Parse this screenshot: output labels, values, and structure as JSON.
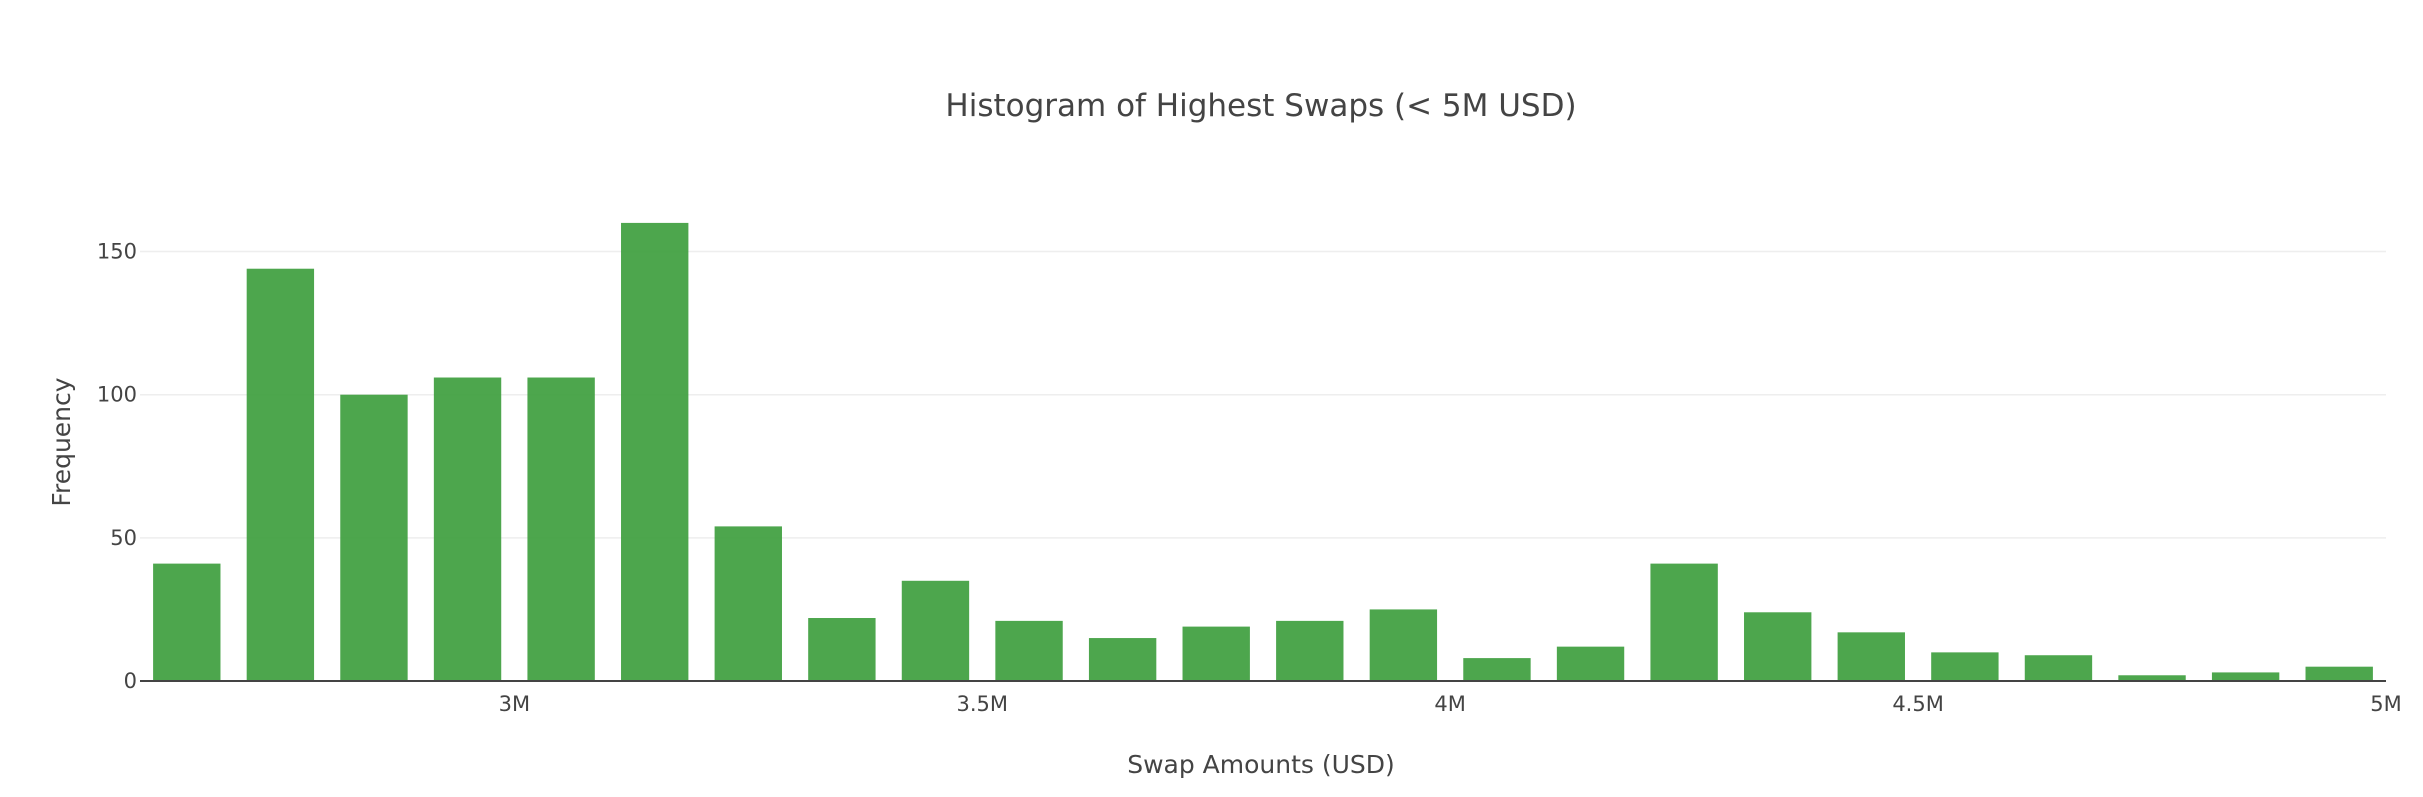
{
  "chart_data": {
    "type": "bar",
    "title": "Histogram of Highest Swaps (< 5M USD)",
    "xlabel": "Swap Amounts (USD)",
    "ylabel": "Frequency",
    "bin_size": 100000,
    "x_range": [
      2600000,
      5000000
    ],
    "ylim": [
      0,
      168
    ],
    "grid": true,
    "legend": "none",
    "x_ticks": [
      {
        "value": 3000000,
        "label": "3M"
      },
      {
        "value": 3500000,
        "label": "3.5M"
      },
      {
        "value": 4000000,
        "label": "4M"
      },
      {
        "value": 4500000,
        "label": "4.5M"
      },
      {
        "value": 5000000,
        "label": "5M"
      }
    ],
    "y_ticks": [
      {
        "value": 0,
        "label": "0"
      },
      {
        "value": 50,
        "label": "50"
      },
      {
        "value": 100,
        "label": "100"
      },
      {
        "value": 150,
        "label": "150"
      }
    ],
    "bins": [
      {
        "start": 2600000,
        "end": 2700000,
        "count": 41
      },
      {
        "start": 2700000,
        "end": 2800000,
        "count": 144
      },
      {
        "start": 2800000,
        "end": 2900000,
        "count": 100
      },
      {
        "start": 2900000,
        "end": 3000000,
        "count": 106
      },
      {
        "start": 3000000,
        "end": 3100000,
        "count": 106
      },
      {
        "start": 3100000,
        "end": 3200000,
        "count": 160
      },
      {
        "start": 3200000,
        "end": 3300000,
        "count": 54
      },
      {
        "start": 3300000,
        "end": 3400000,
        "count": 22
      },
      {
        "start": 3400000,
        "end": 3500000,
        "count": 35
      },
      {
        "start": 3500000,
        "end": 3600000,
        "count": 21
      },
      {
        "start": 3600000,
        "end": 3700000,
        "count": 15
      },
      {
        "start": 3700000,
        "end": 3800000,
        "count": 19
      },
      {
        "start": 3800000,
        "end": 3900000,
        "count": 21
      },
      {
        "start": 3900000,
        "end": 4000000,
        "count": 25
      },
      {
        "start": 4000000,
        "end": 4100000,
        "count": 8
      },
      {
        "start": 4100000,
        "end": 4200000,
        "count": 12
      },
      {
        "start": 4200000,
        "end": 4300000,
        "count": 41
      },
      {
        "start": 4300000,
        "end": 4400000,
        "count": 24
      },
      {
        "start": 4400000,
        "end": 4500000,
        "count": 17
      },
      {
        "start": 4500000,
        "end": 4600000,
        "count": 10
      },
      {
        "start": 4600000,
        "end": 4700000,
        "count": 9
      },
      {
        "start": 4700000,
        "end": 4800000,
        "count": 2
      },
      {
        "start": 4800000,
        "end": 4900000,
        "count": 3
      },
      {
        "start": 4900000,
        "end": 5000000,
        "count": 5
      }
    ],
    "colors": {
      "bar": "#3a9c3a",
      "grid": "#eeeeee",
      "axis": "#444444",
      "text": "#444444"
    }
  }
}
